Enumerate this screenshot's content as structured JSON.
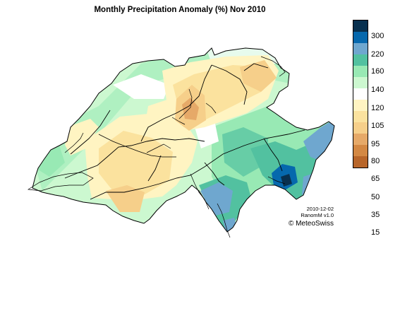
{
  "title": "Monthly Precipitation Anomaly (%) Nov 2010",
  "legend": {
    "colors": [
      "#08304f",
      "#0668ad",
      "#6fa7cf",
      "#52c1a0",
      "#98e9b4",
      "#ccf8d0",
      "#ffffff",
      "#fff4c2",
      "#fbe29e",
      "#f6cf8a",
      "#e6a968",
      "#d38843",
      "#b8662a"
    ],
    "labels": [
      "300",
      "220",
      "160",
      "140",
      "120",
      "105",
      "95",
      "80",
      "65",
      "50",
      "35",
      "15"
    ]
  },
  "credits": {
    "date": "2010-12-02",
    "product": "RanomM v1.0",
    "copyright": "© MeteoSwiss"
  }
}
